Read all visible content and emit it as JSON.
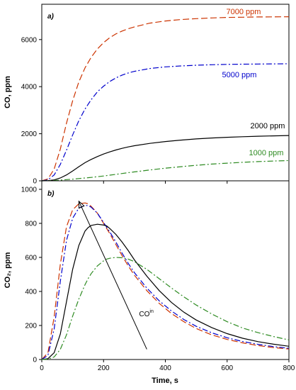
{
  "chart_data": [
    {
      "type": "line",
      "panel_label": "a)",
      "xlabel": "",
      "ylabel": "CO, ppm",
      "xlim": [
        0,
        800
      ],
      "ylim": [
        0,
        7500
      ],
      "xticks": [
        0,
        200,
        400,
        600,
        800
      ],
      "yticks": [
        0,
        2000,
        4000,
        6000
      ],
      "grid": false,
      "x": [
        0,
        20,
        40,
        60,
        80,
        100,
        120,
        140,
        160,
        180,
        200,
        220,
        240,
        260,
        280,
        300,
        350,
        400,
        450,
        500,
        550,
        600,
        650,
        700,
        750,
        800
      ],
      "series": [
        {
          "name": "7000 ppm",
          "color": "#cc3300",
          "dash": "long",
          "values": [
            0,
            80,
            500,
            1350,
            2450,
            3400,
            4200,
            4800,
            5250,
            5600,
            5870,
            6080,
            6240,
            6360,
            6460,
            6540,
            6700,
            6790,
            6850,
            6890,
            6920,
            6940,
            6950,
            6960,
            6965,
            6970
          ]
        },
        {
          "name": "5000 ppm",
          "color": "#0000cc",
          "dash": "dashdot",
          "values": [
            0,
            40,
            250,
            700,
            1300,
            1950,
            2550,
            3050,
            3450,
            3780,
            4020,
            4220,
            4370,
            4490,
            4580,
            4650,
            4770,
            4840,
            4880,
            4910,
            4930,
            4945,
            4955,
            4962,
            4968,
            4972
          ]
        },
        {
          "name": "2000 ppm",
          "color": "#000000",
          "dash": "solid",
          "values": [
            0,
            10,
            40,
            120,
            250,
            420,
            600,
            770,
            910,
            1030,
            1140,
            1230,
            1310,
            1380,
            1440,
            1490,
            1590,
            1670,
            1730,
            1780,
            1820,
            1850,
            1875,
            1895,
            1910,
            1925
          ]
        },
        {
          "name": "1000 ppm",
          "color": "#2e8b22",
          "dash": "dashdot",
          "values": [
            0,
            5,
            15,
            30,
            50,
            70,
            95,
            120,
            145,
            175,
            205,
            240,
            275,
            310,
            345,
            380,
            460,
            535,
            600,
            660,
            710,
            750,
            785,
            815,
            840,
            860
          ]
        }
      ]
    },
    {
      "type": "line",
      "panel_label": "b)",
      "xlabel": "Time, s",
      "ylabel": "CO₂, ppm",
      "xlim": [
        0,
        800
      ],
      "ylim": [
        0,
        1050
      ],
      "xticks": [
        0,
        200,
        400,
        600,
        800
      ],
      "yticks": [
        0,
        200,
        400,
        600,
        800,
        1000
      ],
      "grid": false,
      "x": [
        0,
        20,
        40,
        60,
        80,
        100,
        120,
        140,
        150,
        160,
        180,
        200,
        210,
        220,
        240,
        260,
        280,
        300,
        340,
        380,
        420,
        460,
        500,
        550,
        600,
        650,
        700,
        750,
        800
      ],
      "series": [
        {
          "name": "7000 ppm",
          "color": "#cc3300",
          "dash": "long",
          "values": [
            0,
            40,
            250,
            560,
            780,
            880,
            915,
            920,
            915,
            900,
            860,
            800,
            770,
            740,
            675,
            610,
            550,
            495,
            405,
            330,
            270,
            222,
            182,
            145,
            118,
            98,
            82,
            70,
            62
          ]
        },
        {
          "name": "5000 ppm",
          "color": "#0000cc",
          "dash": "dashdot",
          "values": [
            0,
            25,
            180,
            460,
            700,
            830,
            890,
            905,
            905,
            895,
            860,
            805,
            778,
            750,
            690,
            625,
            565,
            510,
            420,
            345,
            285,
            235,
            195,
            157,
            128,
            106,
            89,
            76,
            66
          ]
        },
        {
          "name": "2000 ppm",
          "color": "#000000",
          "dash": "solid",
          "values": [
            0,
            5,
            40,
            150,
            340,
            530,
            670,
            755,
            775,
            788,
            795,
            790,
            785,
            770,
            735,
            690,
            640,
            585,
            490,
            405,
            335,
            278,
            232,
            188,
            152,
            125,
            105,
            90,
            78
          ]
        },
        {
          "name": "1000 ppm",
          "color": "#2e8b22",
          "dash": "dashdot",
          "values": [
            0,
            2,
            15,
            60,
            145,
            255,
            355,
            440,
            475,
            505,
            550,
            580,
            590,
            595,
            600,
            598,
            590,
            575,
            530,
            475,
            420,
            368,
            320,
            268,
            222,
            185,
            158,
            135,
            115
          ]
        }
      ],
      "annotation": {
        "text": "CO",
        "superscript": "in",
        "arrow_from": [
          340,
          60
        ],
        "arrow_to": [
          120,
          930
        ],
        "text_at": [
          315,
          255
        ]
      }
    }
  ]
}
